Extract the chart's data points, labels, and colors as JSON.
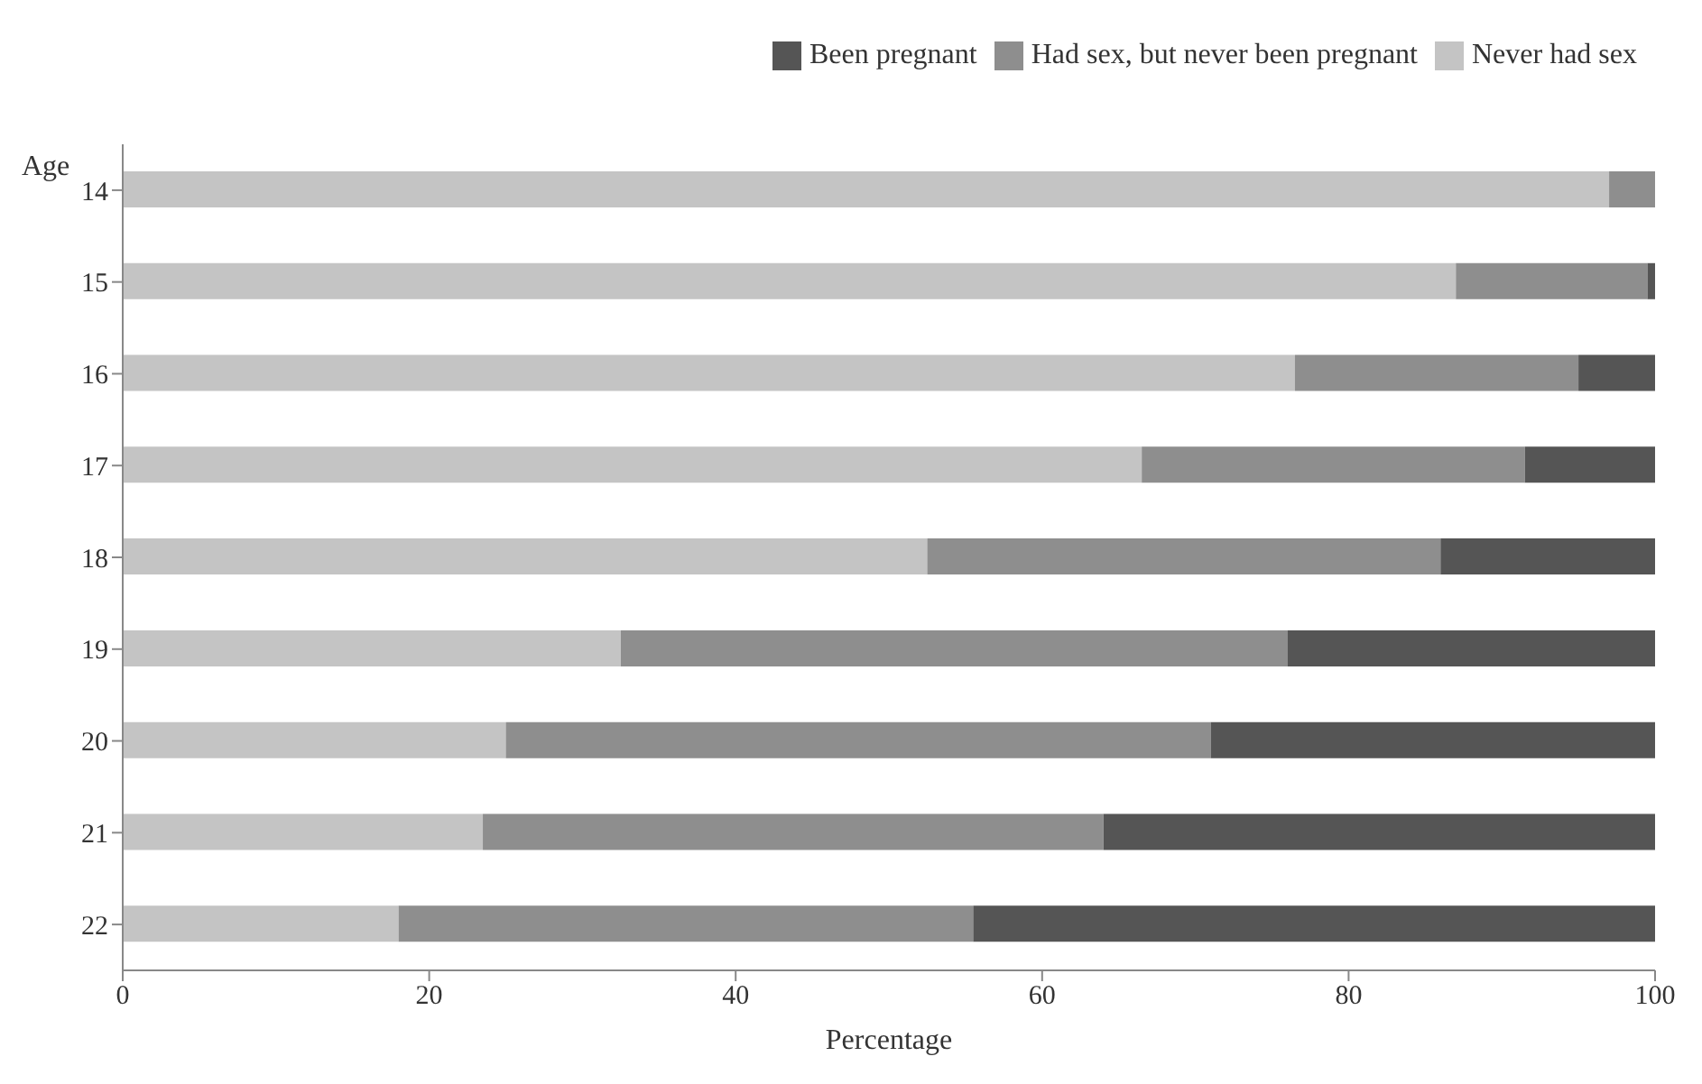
{
  "chart_data": {
    "type": "bar",
    "orientation": "horizontal",
    "stacked": true,
    "ylabel": "Age",
    "xlabel": "Percentage",
    "categories": [
      "14",
      "15",
      "16",
      "17",
      "18",
      "19",
      "20",
      "21",
      "22"
    ],
    "series": [
      {
        "name": "Never had sex",
        "color": "#c4c4c4",
        "values": [
          97,
          87,
          76.5,
          66.5,
          52.5,
          32.5,
          25,
          23.5,
          18
        ]
      },
      {
        "name": "Had sex, but never been pregnant",
        "color": "#8e8e8e",
        "values": [
          3,
          12.5,
          18.5,
          25,
          33.5,
          43.5,
          46,
          40.5,
          37.5
        ]
      },
      {
        "name": "Been pregnant",
        "color": "#555555",
        "values": [
          0,
          0.5,
          5,
          8.5,
          14,
          24,
          29,
          36,
          44.5
        ]
      }
    ],
    "xlim": [
      0,
      100
    ],
    "xticks": [
      0,
      20,
      40,
      60,
      80,
      100
    ],
    "legend": "top right",
    "grid": false
  }
}
